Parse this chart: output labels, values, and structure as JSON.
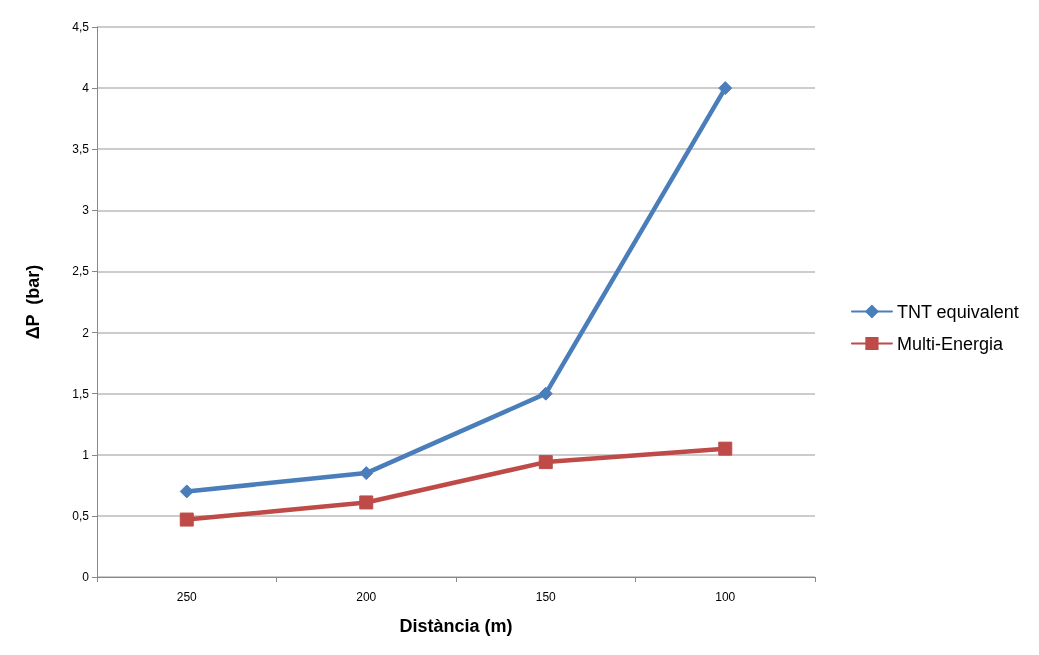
{
  "chart_data": {
    "type": "line",
    "xlabel": "Distància (m)",
    "ylabel": "ΔP  (bar)",
    "categories": [
      "250",
      "200",
      "150",
      "100"
    ],
    "series": [
      {
        "name": "TNT equivalent",
        "color": "#4a7ebb",
        "marker": "diamond",
        "values": [
          0.7,
          0.85,
          1.5,
          4.0
        ]
      },
      {
        "name": "Multi-Energia",
        "color": "#be4b48",
        "marker": "square",
        "values": [
          0.47,
          0.61,
          0.94,
          1.05
        ]
      }
    ],
    "ylim": [
      0,
      4.5
    ],
    "yticks": [
      0,
      {
        "value": 0.5,
        "label": "0,5"
      },
      1,
      {
        "value": 1.5,
        "label": "1,5"
      },
      2,
      {
        "value": 2.5,
        "label": "2,5"
      },
      3,
      {
        "value": 3.5,
        "label": "3,5"
      },
      4,
      {
        "value": 4.5,
        "label": "4,5"
      }
    ],
    "grid": "y",
    "legend": "right",
    "line_style": "solid"
  }
}
